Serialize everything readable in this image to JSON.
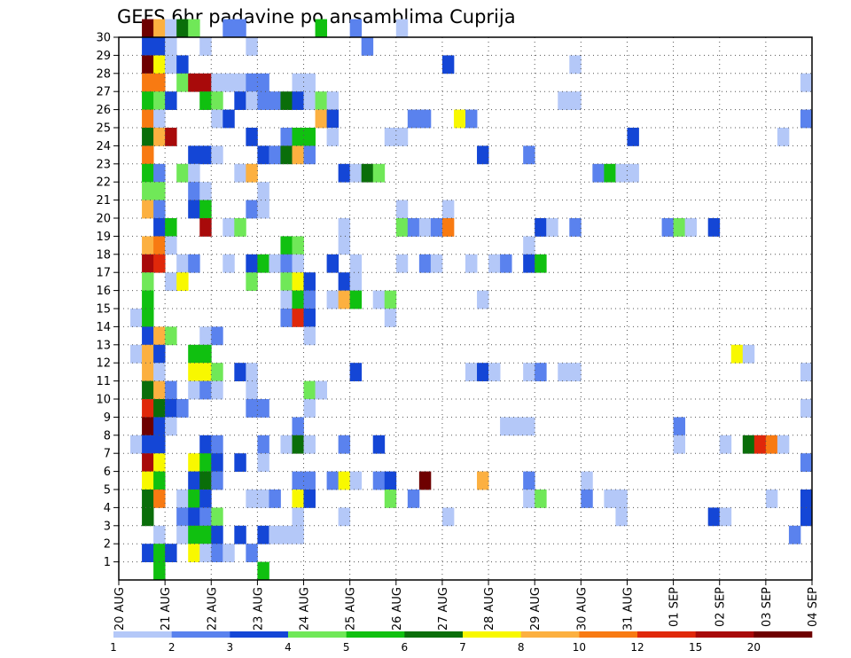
{
  "chart_data": {
    "type": "heatmap",
    "title": "GEFS 6hr padavine po ansamblima Cuprija",
    "xlabel": "",
    "ylabel": "",
    "x_ticks": [
      "20 AUG",
      "21 AUG",
      "22 AUG",
      "23 AUG",
      "24 AUG",
      "25 AUG",
      "26 AUG",
      "27 AUG",
      "28 AUG",
      "29 AUG",
      "30 AUG",
      "31 AUG",
      "01 SEP",
      "02 SEP",
      "03 SEP",
      "04 SEP"
    ],
    "y_ticks": [
      "1",
      "2",
      "3",
      "4",
      "5",
      "6",
      "7",
      "8",
      "9",
      "10",
      "11",
      "12",
      "13",
      "14",
      "15",
      "16",
      "17",
      "18",
      "19",
      "20",
      "21",
      "22",
      "23",
      "24",
      "25",
      "26",
      "27",
      "28",
      "29",
      "30"
    ],
    "xlim": [
      0,
      60
    ],
    "ylim": [
      0,
      30
    ],
    "grid": true,
    "legend": {
      "placement": "bottom",
      "labels": [
        "1",
        "2",
        "3",
        "4",
        "5",
        "6",
        "7",
        "8",
        "10",
        "12",
        "15",
        "20"
      ],
      "colors": [
        "#b4c8f8",
        "#5a82ee",
        "#1446d6",
        "#70e858",
        "#10c010",
        "#0a6e0a",
        "#f8f800",
        "#fcb040",
        "#f87a12",
        "#e0280a",
        "#a80a0a",
        "#6e0000"
      ]
    },
    "cells": [
      [
        30,
        2,
        11
      ],
      [
        30,
        3,
        7
      ],
      [
        30,
        4,
        0
      ],
      [
        30,
        5,
        5
      ],
      [
        30,
        6,
        3
      ],
      [
        30,
        9,
        1
      ],
      [
        30,
        10,
        1
      ],
      [
        30,
        17,
        4
      ],
      [
        30,
        20,
        1
      ],
      [
        30,
        24,
        0
      ],
      [
        29,
        2,
        2
      ],
      [
        29,
        3,
        2
      ],
      [
        29,
        4,
        0
      ],
      [
        29,
        7,
        0
      ],
      [
        29,
        11,
        0
      ],
      [
        29,
        21,
        1
      ],
      [
        28,
        2,
        11
      ],
      [
        28,
        3,
        6
      ],
      [
        28,
        4,
        0
      ],
      [
        28,
        5,
        2
      ],
      [
        28,
        28,
        2
      ],
      [
        28,
        39,
        0
      ],
      [
        27,
        2,
        8
      ],
      [
        27,
        3,
        8
      ],
      [
        27,
        5,
        3
      ],
      [
        27,
        6,
        10
      ],
      [
        27,
        7,
        10
      ],
      [
        27,
        8,
        0
      ],
      [
        27,
        9,
        0
      ],
      [
        27,
        10,
        0
      ],
      [
        27,
        11,
        1
      ],
      [
        27,
        12,
        1
      ],
      [
        27,
        15,
        0
      ],
      [
        27,
        16,
        0
      ],
      [
        27,
        59,
        0
      ],
      [
        26,
        2,
        4
      ],
      [
        26,
        3,
        3
      ],
      [
        26,
        4,
        2
      ],
      [
        26,
        7,
        4
      ],
      [
        26,
        8,
        3
      ],
      [
        26,
        10,
        2
      ],
      [
        26,
        11,
        0
      ],
      [
        26,
        12,
        1
      ],
      [
        26,
        13,
        1
      ],
      [
        26,
        14,
        5
      ],
      [
        26,
        15,
        2
      ],
      [
        26,
        16,
        0
      ],
      [
        26,
        17,
        3
      ],
      [
        26,
        18,
        0
      ],
      [
        26,
        38,
        0
      ],
      [
        26,
        39,
        0
      ],
      [
        25,
        2,
        8
      ],
      [
        25,
        3,
        0
      ],
      [
        25,
        8,
        0
      ],
      [
        25,
        9,
        2
      ],
      [
        25,
        17,
        7
      ],
      [
        25,
        18,
        2
      ],
      [
        25,
        25,
        1
      ],
      [
        25,
        26,
        1
      ],
      [
        25,
        29,
        6
      ],
      [
        25,
        30,
        1
      ],
      [
        25,
        59,
        1
      ],
      [
        24,
        2,
        5
      ],
      [
        24,
        3,
        7
      ],
      [
        24,
        4,
        10
      ],
      [
        24,
        11,
        2
      ],
      [
        24,
        14,
        1
      ],
      [
        24,
        15,
        4
      ],
      [
        24,
        16,
        4
      ],
      [
        24,
        18,
        0
      ],
      [
        24,
        23,
        0
      ],
      [
        24,
        24,
        0
      ],
      [
        24,
        44,
        2
      ],
      [
        24,
        57,
        0
      ],
      [
        23,
        2,
        8
      ],
      [
        23,
        6,
        2
      ],
      [
        23,
        7,
        2
      ],
      [
        23,
        8,
        0
      ],
      [
        23,
        12,
        2
      ],
      [
        23,
        13,
        1
      ],
      [
        23,
        14,
        5
      ],
      [
        23,
        15,
        7
      ],
      [
        23,
        16,
        1
      ],
      [
        23,
        31,
        2
      ],
      [
        23,
        35,
        1
      ],
      [
        22,
        2,
        4
      ],
      [
        22,
        3,
        1
      ],
      [
        22,
        5,
        3
      ],
      [
        22,
        6,
        0
      ],
      [
        22,
        10,
        0
      ],
      [
        22,
        11,
        7
      ],
      [
        22,
        19,
        2
      ],
      [
        22,
        20,
        0
      ],
      [
        22,
        21,
        5
      ],
      [
        22,
        22,
        3
      ],
      [
        22,
        41,
        1
      ],
      [
        22,
        42,
        4
      ],
      [
        22,
        43,
        0
      ],
      [
        22,
        44,
        0
      ],
      [
        21,
        2,
        3
      ],
      [
        21,
        3,
        3
      ],
      [
        21,
        6,
        1
      ],
      [
        21,
        7,
        0
      ],
      [
        21,
        12,
        0
      ],
      [
        20,
        2,
        7
      ],
      [
        20,
        3,
        1
      ],
      [
        20,
        6,
        2
      ],
      [
        20,
        7,
        4
      ],
      [
        20,
        11,
        1
      ],
      [
        20,
        12,
        0
      ],
      [
        20,
        24,
        0
      ],
      [
        20,
        28,
        0
      ],
      [
        19,
        3,
        2
      ],
      [
        19,
        4,
        4
      ],
      [
        19,
        7,
        10
      ],
      [
        19,
        9,
        0
      ],
      [
        19,
        10,
        3
      ],
      [
        19,
        19,
        0
      ],
      [
        19,
        24,
        3
      ],
      [
        19,
        25,
        1
      ],
      [
        19,
        26,
        0
      ],
      [
        19,
        27,
        1
      ],
      [
        19,
        28,
        8
      ],
      [
        19,
        36,
        2
      ],
      [
        19,
        37,
        0
      ],
      [
        19,
        39,
        1
      ],
      [
        19,
        47,
        1
      ],
      [
        19,
        48,
        3
      ],
      [
        19,
        49,
        0
      ],
      [
        19,
        51,
        2
      ],
      [
        18,
        2,
        7
      ],
      [
        18,
        3,
        8
      ],
      [
        18,
        4,
        0
      ],
      [
        18,
        14,
        4
      ],
      [
        18,
        15,
        3
      ],
      [
        18,
        19,
        0
      ],
      [
        18,
        35,
        0
      ],
      [
        17,
        2,
        10
      ],
      [
        17,
        3,
        9
      ],
      [
        17,
        5,
        0
      ],
      [
        17,
        6,
        1
      ],
      [
        17,
        9,
        0
      ],
      [
        17,
        11,
        2
      ],
      [
        17,
        12,
        4
      ],
      [
        17,
        13,
        0
      ],
      [
        17,
        14,
        1
      ],
      [
        17,
        15,
        0
      ],
      [
        17,
        18,
        2
      ],
      [
        17,
        20,
        0
      ],
      [
        17,
        24,
        0
      ],
      [
        17,
        26,
        1
      ],
      [
        17,
        27,
        0
      ],
      [
        17,
        30,
        0
      ],
      [
        17,
        32,
        0
      ],
      [
        17,
        33,
        1
      ],
      [
        17,
        35,
        2
      ],
      [
        17,
        36,
        4
      ],
      [
        16,
        2,
        3
      ],
      [
        16,
        4,
        0
      ],
      [
        16,
        5,
        6
      ],
      [
        16,
        11,
        3
      ],
      [
        16,
        14,
        3
      ],
      [
        16,
        15,
        6
      ],
      [
        16,
        16,
        2
      ],
      [
        16,
        19,
        2
      ],
      [
        16,
        20,
        0
      ],
      [
        15,
        2,
        4
      ],
      [
        15,
        14,
        0
      ],
      [
        15,
        15,
        4
      ],
      [
        15,
        16,
        1
      ],
      [
        15,
        18,
        0
      ],
      [
        15,
        19,
        7
      ],
      [
        15,
        20,
        4
      ],
      [
        15,
        22,
        0
      ],
      [
        15,
        23,
        3
      ],
      [
        15,
        31,
        0
      ],
      [
        14,
        1,
        0
      ],
      [
        14,
        2,
        4
      ],
      [
        14,
        14,
        1
      ],
      [
        14,
        15,
        9
      ],
      [
        14,
        16,
        2
      ],
      [
        14,
        23,
        0
      ],
      [
        13,
        2,
        2
      ],
      [
        13,
        3,
        7
      ],
      [
        13,
        4,
        3
      ],
      [
        13,
        7,
        0
      ],
      [
        13,
        8,
        1
      ],
      [
        13,
        16,
        0
      ],
      [
        12,
        1,
        0
      ],
      [
        12,
        2,
        7
      ],
      [
        12,
        3,
        2
      ],
      [
        12,
        6,
        4
      ],
      [
        12,
        7,
        4
      ],
      [
        12,
        53,
        6
      ],
      [
        12,
        54,
        0
      ],
      [
        11,
        2,
        7
      ],
      [
        11,
        3,
        0
      ],
      [
        11,
        6,
        6
      ],
      [
        11,
        7,
        6
      ],
      [
        11,
        8,
        3
      ],
      [
        11,
        10,
        2
      ],
      [
        11,
        11,
        0
      ],
      [
        11,
        20,
        2
      ],
      [
        11,
        30,
        0
      ],
      [
        11,
        31,
        2
      ],
      [
        11,
        32,
        0
      ],
      [
        11,
        35,
        0
      ],
      [
        11,
        36,
        1
      ],
      [
        11,
        38,
        0
      ],
      [
        11,
        39,
        0
      ],
      [
        11,
        59,
        0
      ],
      [
        10,
        2,
        5
      ],
      [
        10,
        3,
        7
      ],
      [
        10,
        4,
        1
      ],
      [
        10,
        6,
        0
      ],
      [
        10,
        7,
        1
      ],
      [
        10,
        8,
        0
      ],
      [
        10,
        11,
        0
      ],
      [
        10,
        16,
        3
      ],
      [
        10,
        17,
        0
      ],
      [
        9,
        2,
        9
      ],
      [
        9,
        3,
        5
      ],
      [
        9,
        4,
        2
      ],
      [
        9,
        5,
        1
      ],
      [
        9,
        11,
        1
      ],
      [
        9,
        12,
        1
      ],
      [
        9,
        16,
        0
      ],
      [
        9,
        59,
        0
      ],
      [
        8,
        2,
        11
      ],
      [
        8,
        3,
        2
      ],
      [
        8,
        4,
        0
      ],
      [
        8,
        15,
        1
      ],
      [
        8,
        33,
        0
      ],
      [
        8,
        34,
        0
      ],
      [
        8,
        35,
        0
      ],
      [
        8,
        48,
        1
      ],
      [
        7,
        1,
        0
      ],
      [
        7,
        2,
        2
      ],
      [
        7,
        3,
        2
      ],
      [
        7,
        7,
        2
      ],
      [
        7,
        8,
        1
      ],
      [
        7,
        12,
        1
      ],
      [
        7,
        14,
        0
      ],
      [
        7,
        15,
        5
      ],
      [
        7,
        16,
        0
      ],
      [
        7,
        19,
        1
      ],
      [
        7,
        22,
        2
      ],
      [
        7,
        48,
        0
      ],
      [
        7,
        52,
        0
      ],
      [
        7,
        54,
        5
      ],
      [
        7,
        55,
        9
      ],
      [
        7,
        56,
        8
      ],
      [
        7,
        57,
        0
      ],
      [
        6,
        2,
        10
      ],
      [
        6,
        3,
        6
      ],
      [
        6,
        6,
        6
      ],
      [
        6,
        7,
        4
      ],
      [
        6,
        8,
        2
      ],
      [
        6,
        10,
        2
      ],
      [
        6,
        12,
        0
      ],
      [
        6,
        59,
        1
      ],
      [
        5,
        2,
        6
      ],
      [
        5,
        3,
        4
      ],
      [
        5,
        6,
        2
      ],
      [
        5,
        7,
        5
      ],
      [
        5,
        8,
        1
      ],
      [
        5,
        15,
        1
      ],
      [
        5,
        16,
        1
      ],
      [
        5,
        18,
        1
      ],
      [
        5,
        19,
        6
      ],
      [
        5,
        20,
        0
      ],
      [
        5,
        22,
        1
      ],
      [
        5,
        23,
        2
      ],
      [
        5,
        26,
        11
      ],
      [
        5,
        31,
        7
      ],
      [
        5,
        35,
        1
      ],
      [
        5,
        40,
        0
      ],
      [
        4,
        2,
        5
      ],
      [
        4,
        3,
        8
      ],
      [
        4,
        5,
        0
      ],
      [
        4,
        6,
        4
      ],
      [
        4,
        7,
        2
      ],
      [
        4,
        11,
        0
      ],
      [
        4,
        12,
        0
      ],
      [
        4,
        13,
        1
      ],
      [
        4,
        15,
        6
      ],
      [
        4,
        16,
        2
      ],
      [
        4,
        23,
        3
      ],
      [
        4,
        25,
        1
      ],
      [
        4,
        35,
        0
      ],
      [
        4,
        36,
        3
      ],
      [
        4,
        40,
        1
      ],
      [
        4,
        42,
        0
      ],
      [
        4,
        43,
        0
      ],
      [
        4,
        56,
        0
      ],
      [
        4,
        59,
        2
      ],
      [
        3,
        2,
        5
      ],
      [
        3,
        5,
        1
      ],
      [
        3,
        6,
        2
      ],
      [
        3,
        7,
        1
      ],
      [
        3,
        8,
        3
      ],
      [
        3,
        15,
        0
      ],
      [
        3,
        19,
        0
      ],
      [
        3,
        28,
        0
      ],
      [
        3,
        43,
        0
      ],
      [
        3,
        51,
        2
      ],
      [
        3,
        52,
        0
      ],
      [
        3,
        59,
        2
      ],
      [
        2,
        3,
        0
      ],
      [
        2,
        5,
        0
      ],
      [
        2,
        6,
        4
      ],
      [
        2,
        7,
        4
      ],
      [
        2,
        8,
        2
      ],
      [
        2,
        10,
        2
      ],
      [
        2,
        12,
        2
      ],
      [
        2,
        13,
        0
      ],
      [
        2,
        14,
        0
      ],
      [
        2,
        15,
        0
      ],
      [
        2,
        58,
        1
      ],
      [
        1,
        2,
        2
      ],
      [
        1,
        3,
        4
      ],
      [
        1,
        4,
        2
      ],
      [
        1,
        6,
        6
      ],
      [
        1,
        7,
        0
      ],
      [
        1,
        8,
        1
      ],
      [
        1,
        9,
        0
      ],
      [
        1,
        11,
        1
      ],
      [
        0,
        3,
        4
      ],
      [
        0,
        12,
        4
      ]
    ]
  }
}
